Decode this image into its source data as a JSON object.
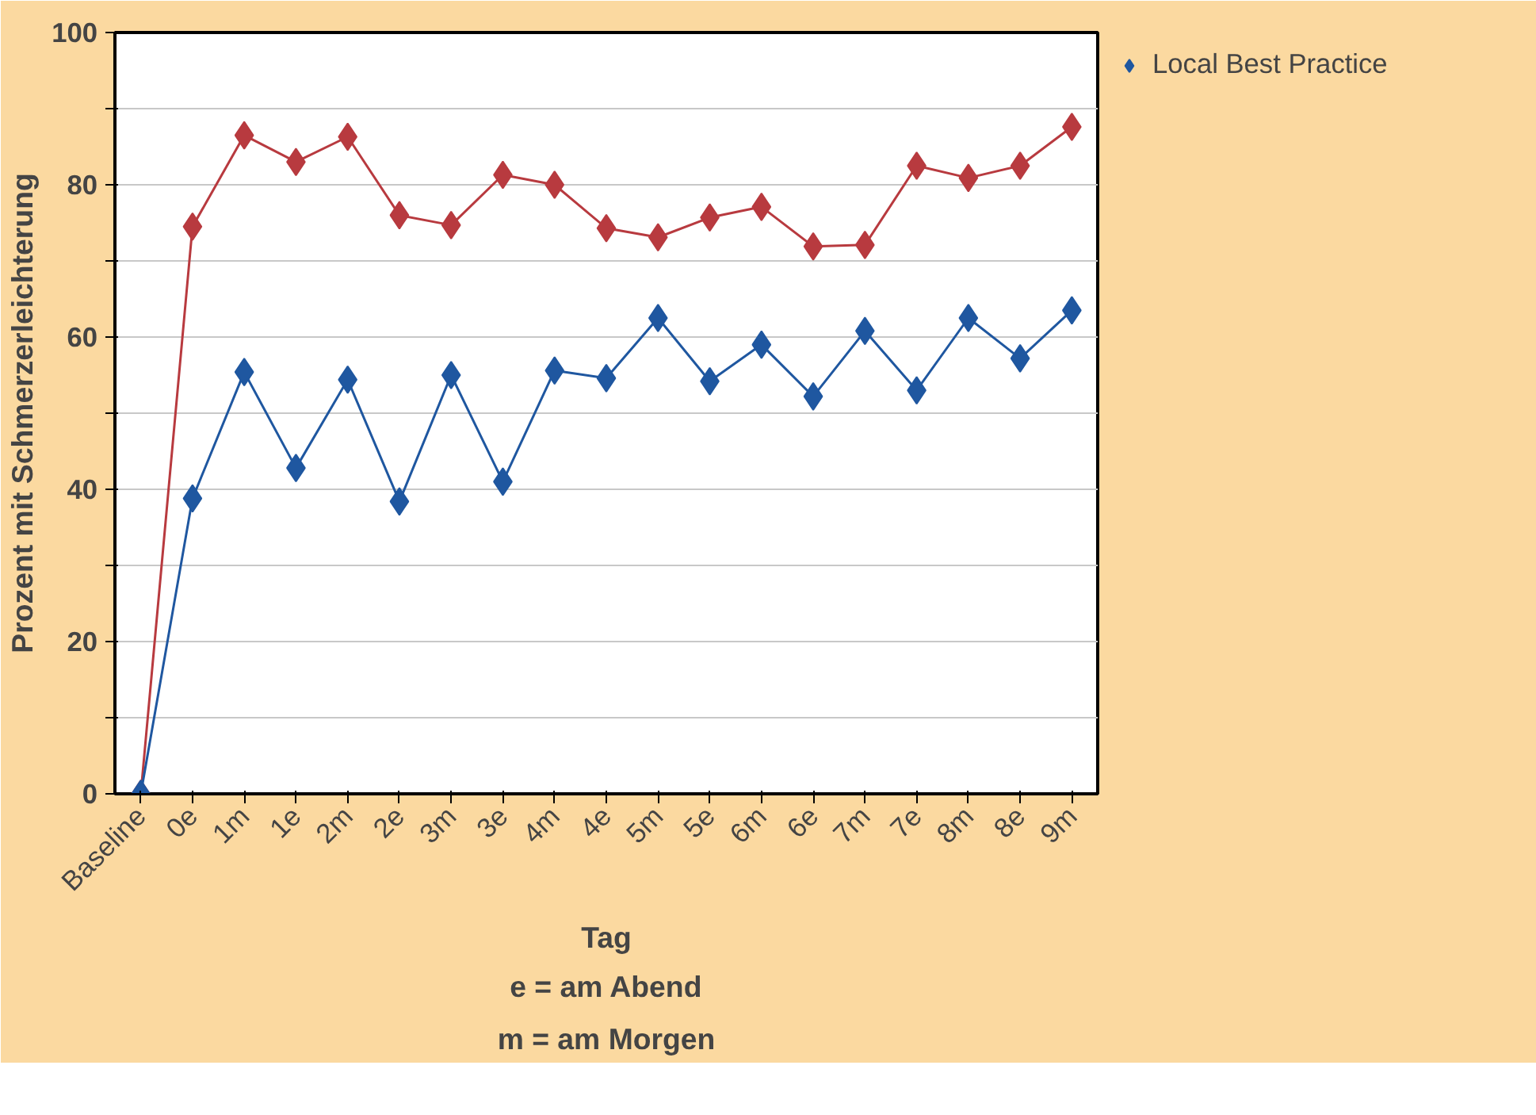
{
  "chart_data": {
    "type": "line",
    "xlabel": "Tag",
    "ylabel": "Prozent mit Schmerzerleichterung",
    "annotations": [
      "e = am Abend",
      "m = am Morgen"
    ],
    "categories": [
      "Baseline",
      "0e",
      "1m",
      "1e",
      "2m",
      "2e",
      "3m",
      "3e",
      "4m",
      "4e",
      "5m",
      "5e",
      "6m",
      "6e",
      "7m",
      "7e",
      "8m",
      "8e",
      "9m"
    ],
    "series": [
      {
        "color": "#b83a3f",
        "values": [
          0,
          74.5,
          86.5,
          83,
          86.3,
          76,
          74.7,
          81.3,
          80,
          74.3,
          73.1,
          75.7,
          77.1,
          71.9,
          72.1,
          82.5,
          80.9,
          82.5,
          87.6
        ]
      },
      {
        "name": "Local Best Practice",
        "color": "#1f57a0",
        "values": [
          0,
          38.8,
          55.4,
          42.8,
          54.4,
          38.4,
          55,
          41,
          55.6,
          54.6,
          62.5,
          54.2,
          59,
          52.2,
          60.8,
          53,
          62.5,
          57.2,
          63.5
        ]
      }
    ],
    "ylim": [
      0,
      100
    ],
    "yticks": [
      0,
      {
        "value": 10,
        "label": null
      },
      20,
      {
        "value": 30,
        "label": null
      },
      40,
      {
        "value": 50,
        "label": null
      },
      60,
      {
        "value": 70,
        "label": null
      },
      80,
      {
        "value": 90,
        "label": null
      },
      100
    ],
    "grid": "y",
    "legend": "top right",
    "marker": "diamond",
    "line_style": "solid"
  }
}
